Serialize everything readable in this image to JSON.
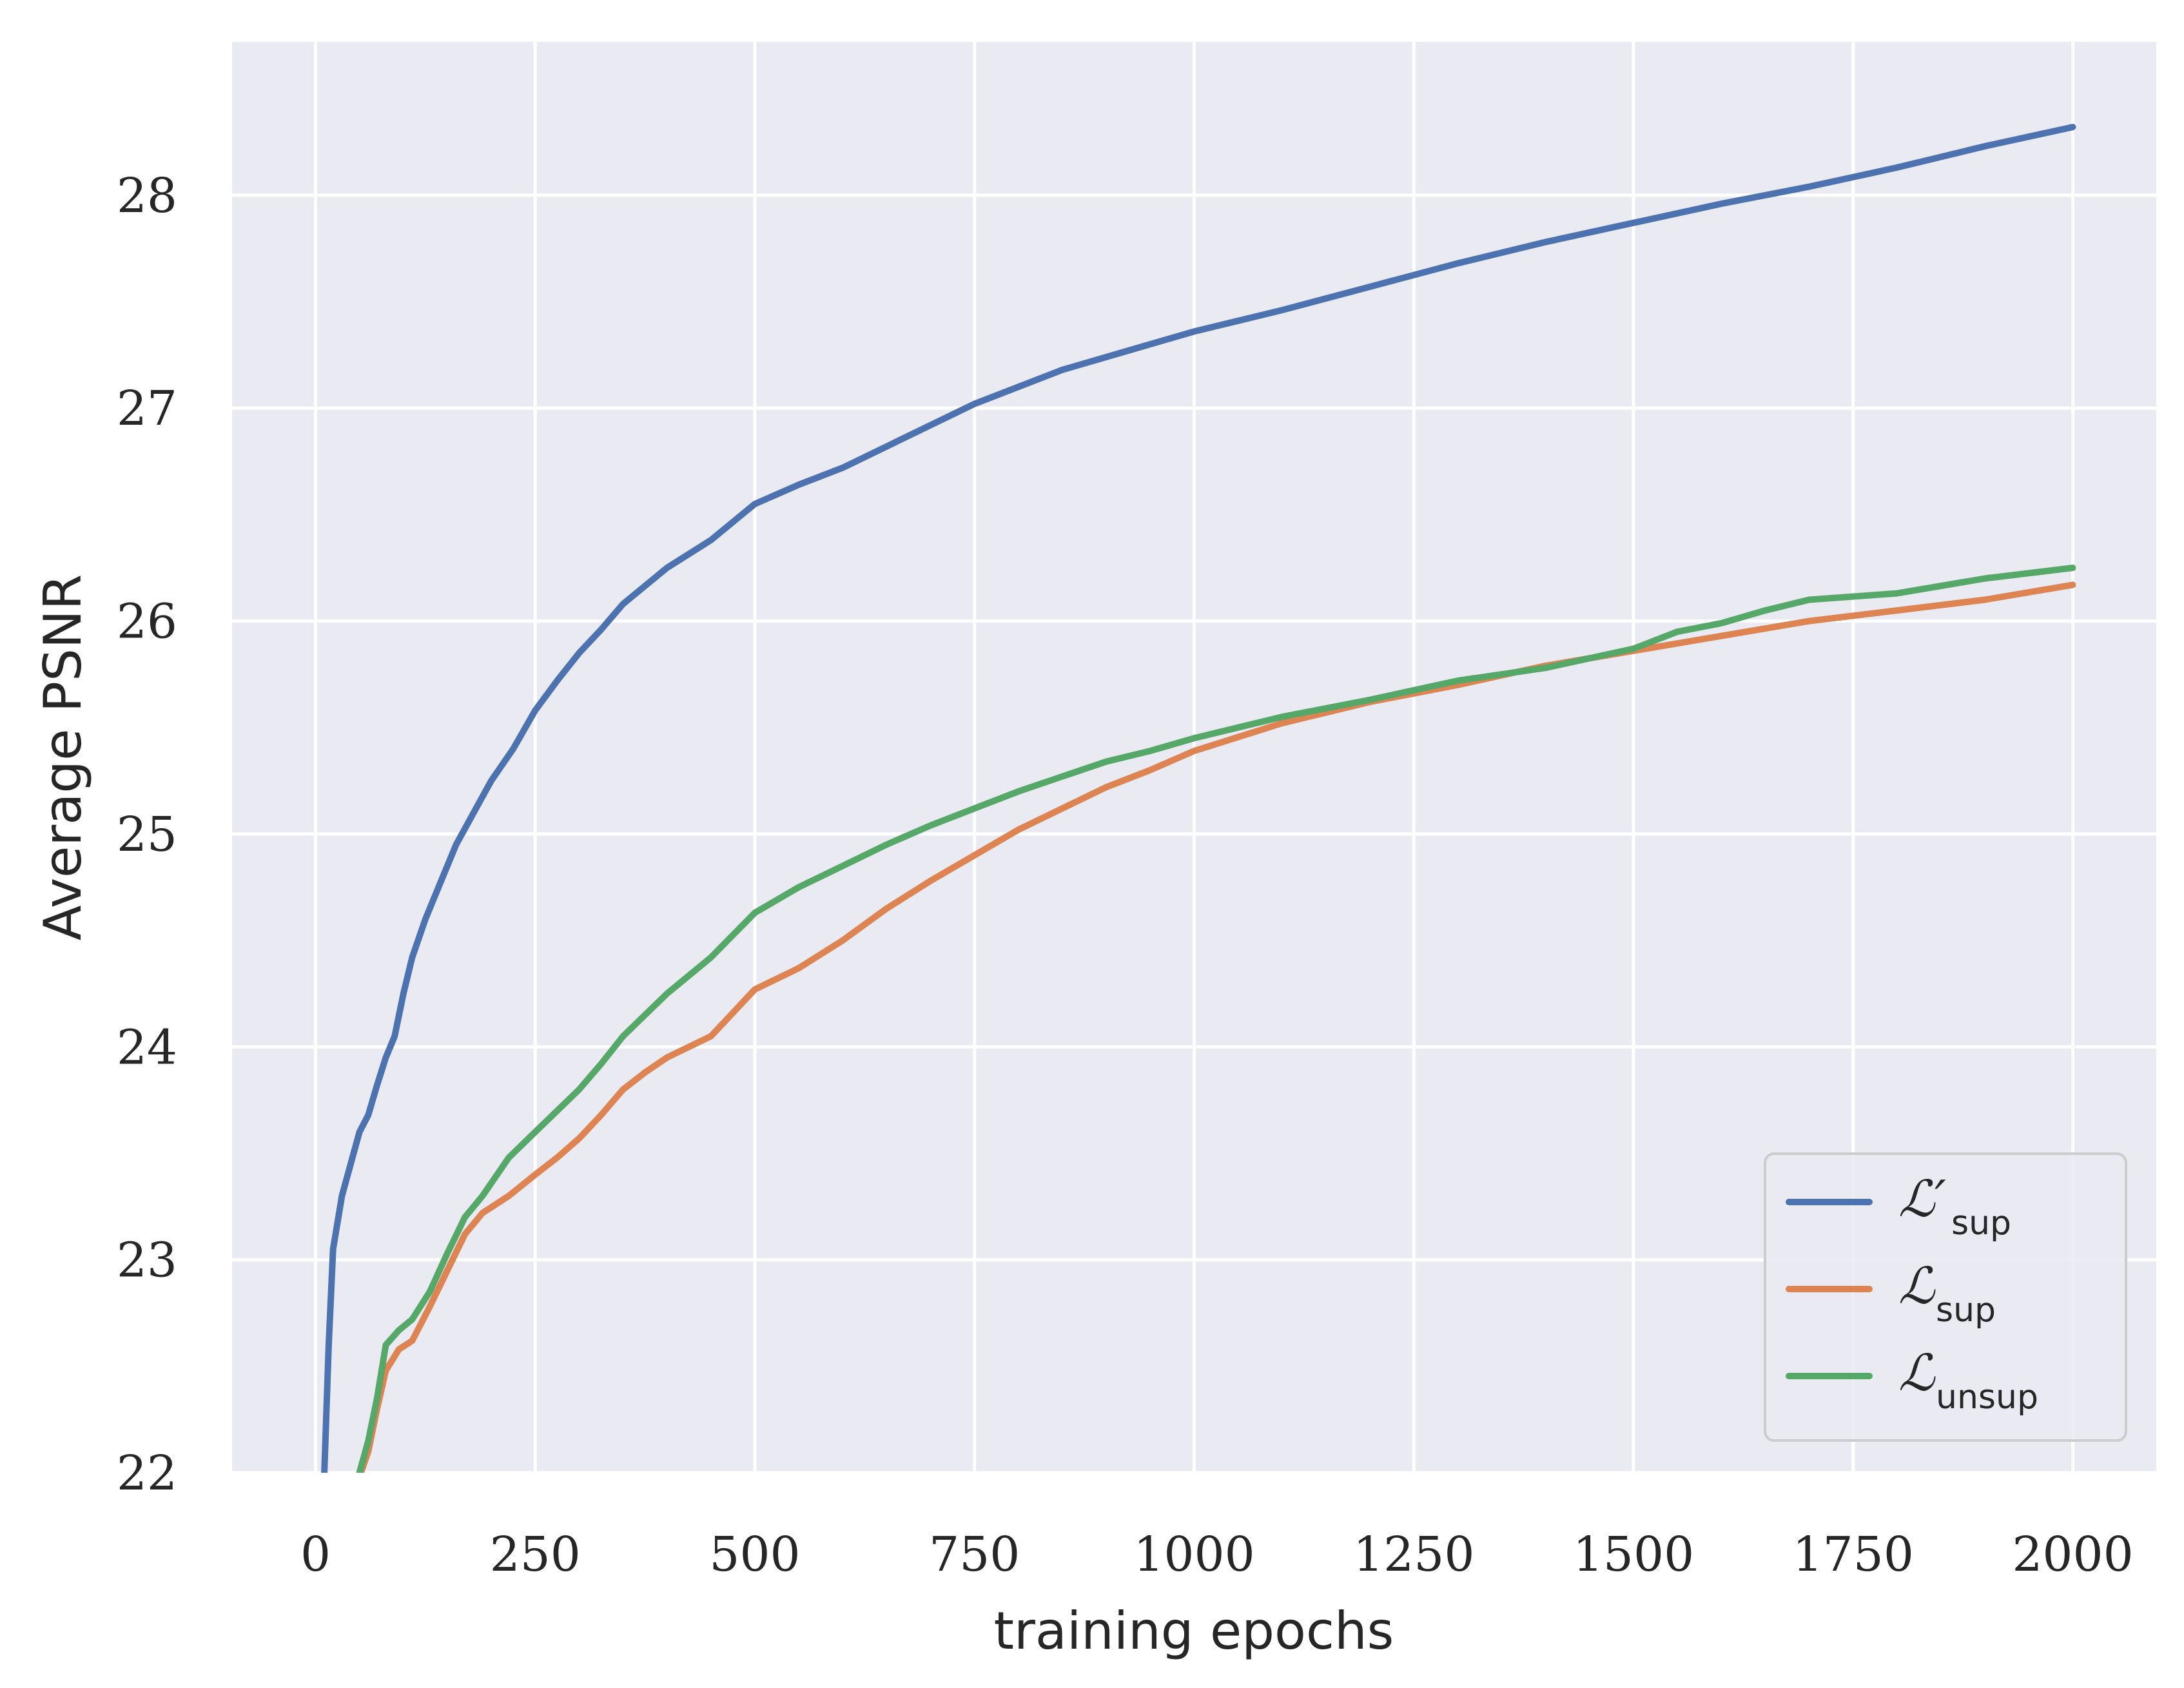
{
  "chart_data": {
    "type": "line",
    "xlabel": "training epochs",
    "ylabel": "Average PSNR",
    "xlim": [
      -95,
      2095
    ],
    "ylim": [
      22,
      28.72
    ],
    "xticks": [
      0,
      250,
      500,
      750,
      1000,
      1250,
      1500,
      1750,
      2000
    ],
    "yticks": [
      22,
      23,
      24,
      25,
      26,
      27,
      28
    ],
    "grid": true,
    "legend_position": "bottom-right",
    "series": [
      {
        "name": "ℒ′sup",
        "label_main": "ℒ′",
        "label_sub": "sup",
        "color": "#4c72b0",
        "points": [
          [
            10,
            22.0
          ],
          [
            15,
            22.6
          ],
          [
            20,
            23.05
          ],
          [
            30,
            23.3
          ],
          [
            40,
            23.45
          ],
          [
            50,
            23.6
          ],
          [
            60,
            23.68
          ],
          [
            70,
            23.82
          ],
          [
            80,
            23.95
          ],
          [
            90,
            24.05
          ],
          [
            100,
            24.25
          ],
          [
            110,
            24.42
          ],
          [
            125,
            24.6
          ],
          [
            140,
            24.75
          ],
          [
            160,
            24.95
          ],
          [
            180,
            25.1
          ],
          [
            200,
            25.25
          ],
          [
            225,
            25.4
          ],
          [
            250,
            25.58
          ],
          [
            275,
            25.72
          ],
          [
            300,
            25.85
          ],
          [
            325,
            25.96
          ],
          [
            350,
            26.08
          ],
          [
            400,
            26.25
          ],
          [
            450,
            26.38
          ],
          [
            500,
            26.55
          ],
          [
            550,
            26.64
          ],
          [
            600,
            26.72
          ],
          [
            650,
            26.82
          ],
          [
            700,
            26.92
          ],
          [
            750,
            27.02
          ],
          [
            800,
            27.1
          ],
          [
            850,
            27.18
          ],
          [
            900,
            27.24
          ],
          [
            950,
            27.3
          ],
          [
            1000,
            27.36
          ],
          [
            1100,
            27.46
          ],
          [
            1200,
            27.57
          ],
          [
            1300,
            27.68
          ],
          [
            1400,
            27.78
          ],
          [
            1500,
            27.87
          ],
          [
            1600,
            27.96
          ],
          [
            1700,
            28.04
          ],
          [
            1800,
            28.13
          ],
          [
            1900,
            28.23
          ],
          [
            2000,
            28.32
          ]
        ]
      },
      {
        "name": "ℒsup",
        "label_main": "ℒ",
        "label_sub": "sup",
        "color": "#dd8452",
        "points": [
          [
            50,
            21.98
          ],
          [
            60,
            22.1
          ],
          [
            70,
            22.3
          ],
          [
            80,
            22.48
          ],
          [
            95,
            22.58
          ],
          [
            110,
            22.62
          ],
          [
            130,
            22.78
          ],
          [
            150,
            22.95
          ],
          [
            170,
            23.12
          ],
          [
            190,
            23.22
          ],
          [
            220,
            23.3
          ],
          [
            250,
            23.4
          ],
          [
            275,
            23.48
          ],
          [
            300,
            23.57
          ],
          [
            325,
            23.68
          ],
          [
            350,
            23.8
          ],
          [
            375,
            23.88
          ],
          [
            400,
            23.95
          ],
          [
            450,
            24.05
          ],
          [
            500,
            24.27
          ],
          [
            550,
            24.37
          ],
          [
            600,
            24.5
          ],
          [
            650,
            24.65
          ],
          [
            700,
            24.78
          ],
          [
            750,
            24.9
          ],
          [
            800,
            25.02
          ],
          [
            850,
            25.12
          ],
          [
            900,
            25.22
          ],
          [
            950,
            25.3
          ],
          [
            1000,
            25.39
          ],
          [
            1100,
            25.52
          ],
          [
            1200,
            25.62
          ],
          [
            1300,
            25.7
          ],
          [
            1400,
            25.79
          ],
          [
            1500,
            25.86
          ],
          [
            1600,
            25.93
          ],
          [
            1700,
            26.0
          ],
          [
            1800,
            26.05
          ],
          [
            1900,
            26.1
          ],
          [
            2000,
            26.17
          ]
        ]
      },
      {
        "name": "ℒunsup",
        "label_main": "ℒ",
        "label_sub": "unsup",
        "color": "#55a868",
        "points": [
          [
            50,
            22.0
          ],
          [
            60,
            22.15
          ],
          [
            70,
            22.35
          ],
          [
            80,
            22.6
          ],
          [
            95,
            22.67
          ],
          [
            110,
            22.72
          ],
          [
            130,
            22.85
          ],
          [
            150,
            23.03
          ],
          [
            170,
            23.2
          ],
          [
            190,
            23.3
          ],
          [
            220,
            23.48
          ],
          [
            250,
            23.6
          ],
          [
            275,
            23.7
          ],
          [
            300,
            23.8
          ],
          [
            325,
            23.92
          ],
          [
            350,
            24.05
          ],
          [
            375,
            24.15
          ],
          [
            400,
            24.25
          ],
          [
            450,
            24.42
          ],
          [
            500,
            24.63
          ],
          [
            550,
            24.75
          ],
          [
            600,
            24.85
          ],
          [
            650,
            24.95
          ],
          [
            700,
            25.04
          ],
          [
            750,
            25.12
          ],
          [
            800,
            25.2
          ],
          [
            850,
            25.27
          ],
          [
            900,
            25.34
          ],
          [
            950,
            25.39
          ],
          [
            1000,
            25.45
          ],
          [
            1100,
            25.55
          ],
          [
            1200,
            25.63
          ],
          [
            1300,
            25.72
          ],
          [
            1400,
            25.78
          ],
          [
            1500,
            25.87
          ],
          [
            1550,
            25.95
          ],
          [
            1600,
            25.99
          ],
          [
            1650,
            26.05
          ],
          [
            1700,
            26.1
          ],
          [
            1800,
            26.13
          ],
          [
            1900,
            26.2
          ],
          [
            2000,
            26.25
          ]
        ]
      }
    ]
  }
}
